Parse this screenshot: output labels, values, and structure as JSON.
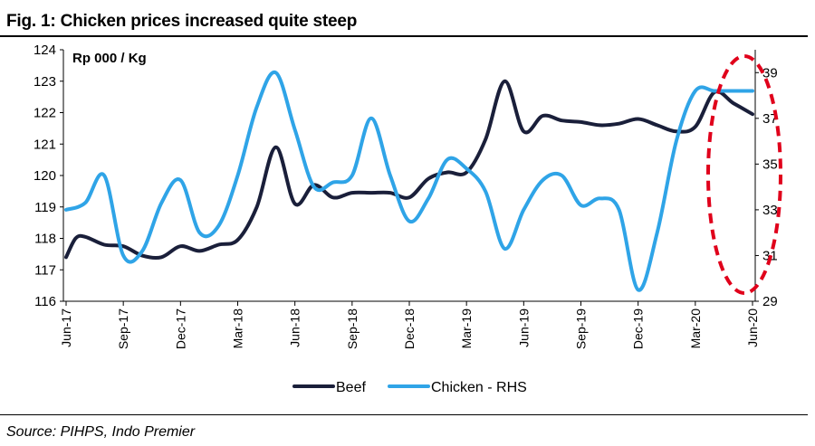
{
  "figure": {
    "title": "Fig. 1:  Chicken prices increased quite steep",
    "source": "Source: PIHPS, Indo Premier"
  },
  "chart_data": {
    "type": "line",
    "title": "Fig. 1:  Chicken prices increased quite steep",
    "unit_label": "Rp 000 / Kg",
    "left_axis": {
      "min": 116,
      "max": 124,
      "ticks": [
        124,
        123,
        122,
        121,
        120,
        119,
        118,
        117,
        116
      ]
    },
    "right_axis": {
      "min": 29,
      "max": 40,
      "ticks": [
        39,
        37,
        35,
        33,
        31,
        29
      ]
    },
    "x_tick_labels": [
      "Jun-17",
      "Sep-17",
      "Dec-17",
      "Mar-18",
      "Jun-18",
      "Sep-18",
      "Dec-18",
      "Mar-19",
      "Jun-19",
      "Sep-19",
      "Dec-19",
      "Mar-20",
      "Jun-20"
    ],
    "x_range": [
      0,
      36
    ],
    "grid": false,
    "legend_position": "bottom",
    "colors": {
      "beef": "#1a1f3a",
      "chicken": "#2fa4e7",
      "highlight": "#e0001b"
    },
    "annotation": "dashed-ellipse-around-latest-values",
    "series": [
      {
        "name": "Beef",
        "axis": "left",
        "x": [
          0,
          0.5,
          1,
          2,
          3,
          4,
          5,
          6,
          7,
          8,
          9,
          10,
          11,
          12,
          13,
          14,
          15,
          16,
          17,
          18,
          19,
          20,
          21,
          22,
          23,
          24,
          25,
          26,
          27,
          28,
          29,
          30,
          31,
          32,
          33,
          34,
          35,
          36
        ],
        "y": [
          117.4,
          118.0,
          118.05,
          117.8,
          117.75,
          117.45,
          117.4,
          117.75,
          117.6,
          117.8,
          117.95,
          119.0,
          120.9,
          119.1,
          119.7,
          119.3,
          119.45,
          119.45,
          119.45,
          119.3,
          119.9,
          120.1,
          120.1,
          121.15,
          123.0,
          121.4,
          121.9,
          121.75,
          121.7,
          121.6,
          121.65,
          121.8,
          121.6,
          121.4,
          121.55,
          122.65,
          122.3,
          121.95
        ]
      },
      {
        "name": "Chicken - RHS",
        "axis": "right",
        "x": [
          0,
          1,
          2,
          3,
          4,
          5,
          6,
          7,
          8,
          9,
          10,
          11,
          12,
          13,
          14,
          15,
          16,
          17,
          18,
          19,
          20,
          21,
          22,
          23,
          24,
          25,
          26,
          27,
          28,
          29,
          30,
          31,
          32,
          33,
          34,
          35,
          36
        ],
        "y": [
          33.0,
          33.3,
          34.5,
          31.0,
          31.2,
          33.3,
          34.3,
          32.0,
          32.3,
          34.5,
          37.5,
          39.0,
          36.5,
          34.0,
          34.2,
          34.5,
          37.0,
          34.5,
          32.5,
          33.5,
          35.2,
          34.8,
          33.8,
          31.3,
          33.0,
          34.3,
          34.5,
          33.2,
          33.5,
          33.0,
          29.5,
          32.0,
          36.0,
          38.2,
          38.2,
          38.2,
          38.2
        ]
      }
    ]
  }
}
